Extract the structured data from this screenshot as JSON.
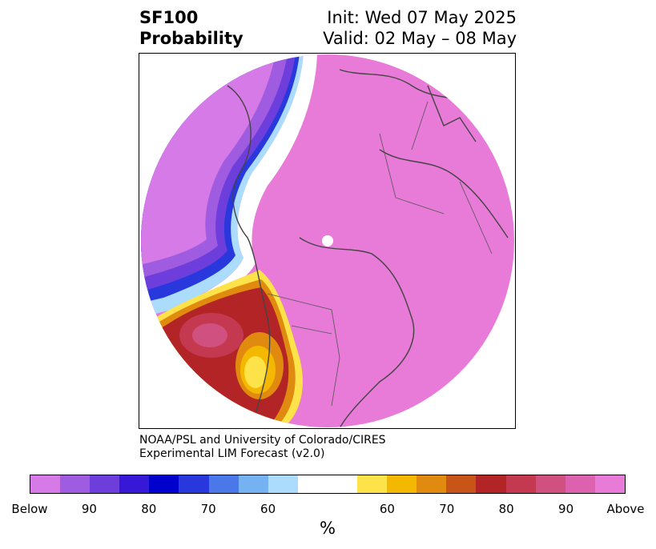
{
  "title": {
    "variable": "SF100",
    "subtitle": "Probability",
    "init": "Init: Wed 07 May 2025",
    "valid": "Valid: 02 May – 08 May"
  },
  "credit": {
    "line1": "NOAA/PSL and University of Colorado/CIRES",
    "line2": "Experimental LIM Forecast (v2.0)"
  },
  "colorbar": {
    "unit": "%",
    "colors": [
      "#d67ae8",
      "#a05ce0",
      "#6e3edc",
      "#3718d6",
      "#0000cc",
      "#2838dc",
      "#4a78e8",
      "#74b2f2",
      "#acdcfc",
      "#ffffff",
      "#ffffff",
      "#fde24a",
      "#f4b800",
      "#e08a10",
      "#c85418",
      "#b22426",
      "#c43850",
      "#d05080",
      "#dc62b0",
      "#e87ad8"
    ],
    "tick_labels": [
      "Below",
      "90",
      "80",
      "70",
      "60",
      "60",
      "70",
      "80",
      "90",
      "Above"
    ]
  },
  "legend_colors": {
    "above_dominant": "#e87ad8",
    "below_dominant": "#d67ae8",
    "coastline": "#444444"
  }
}
